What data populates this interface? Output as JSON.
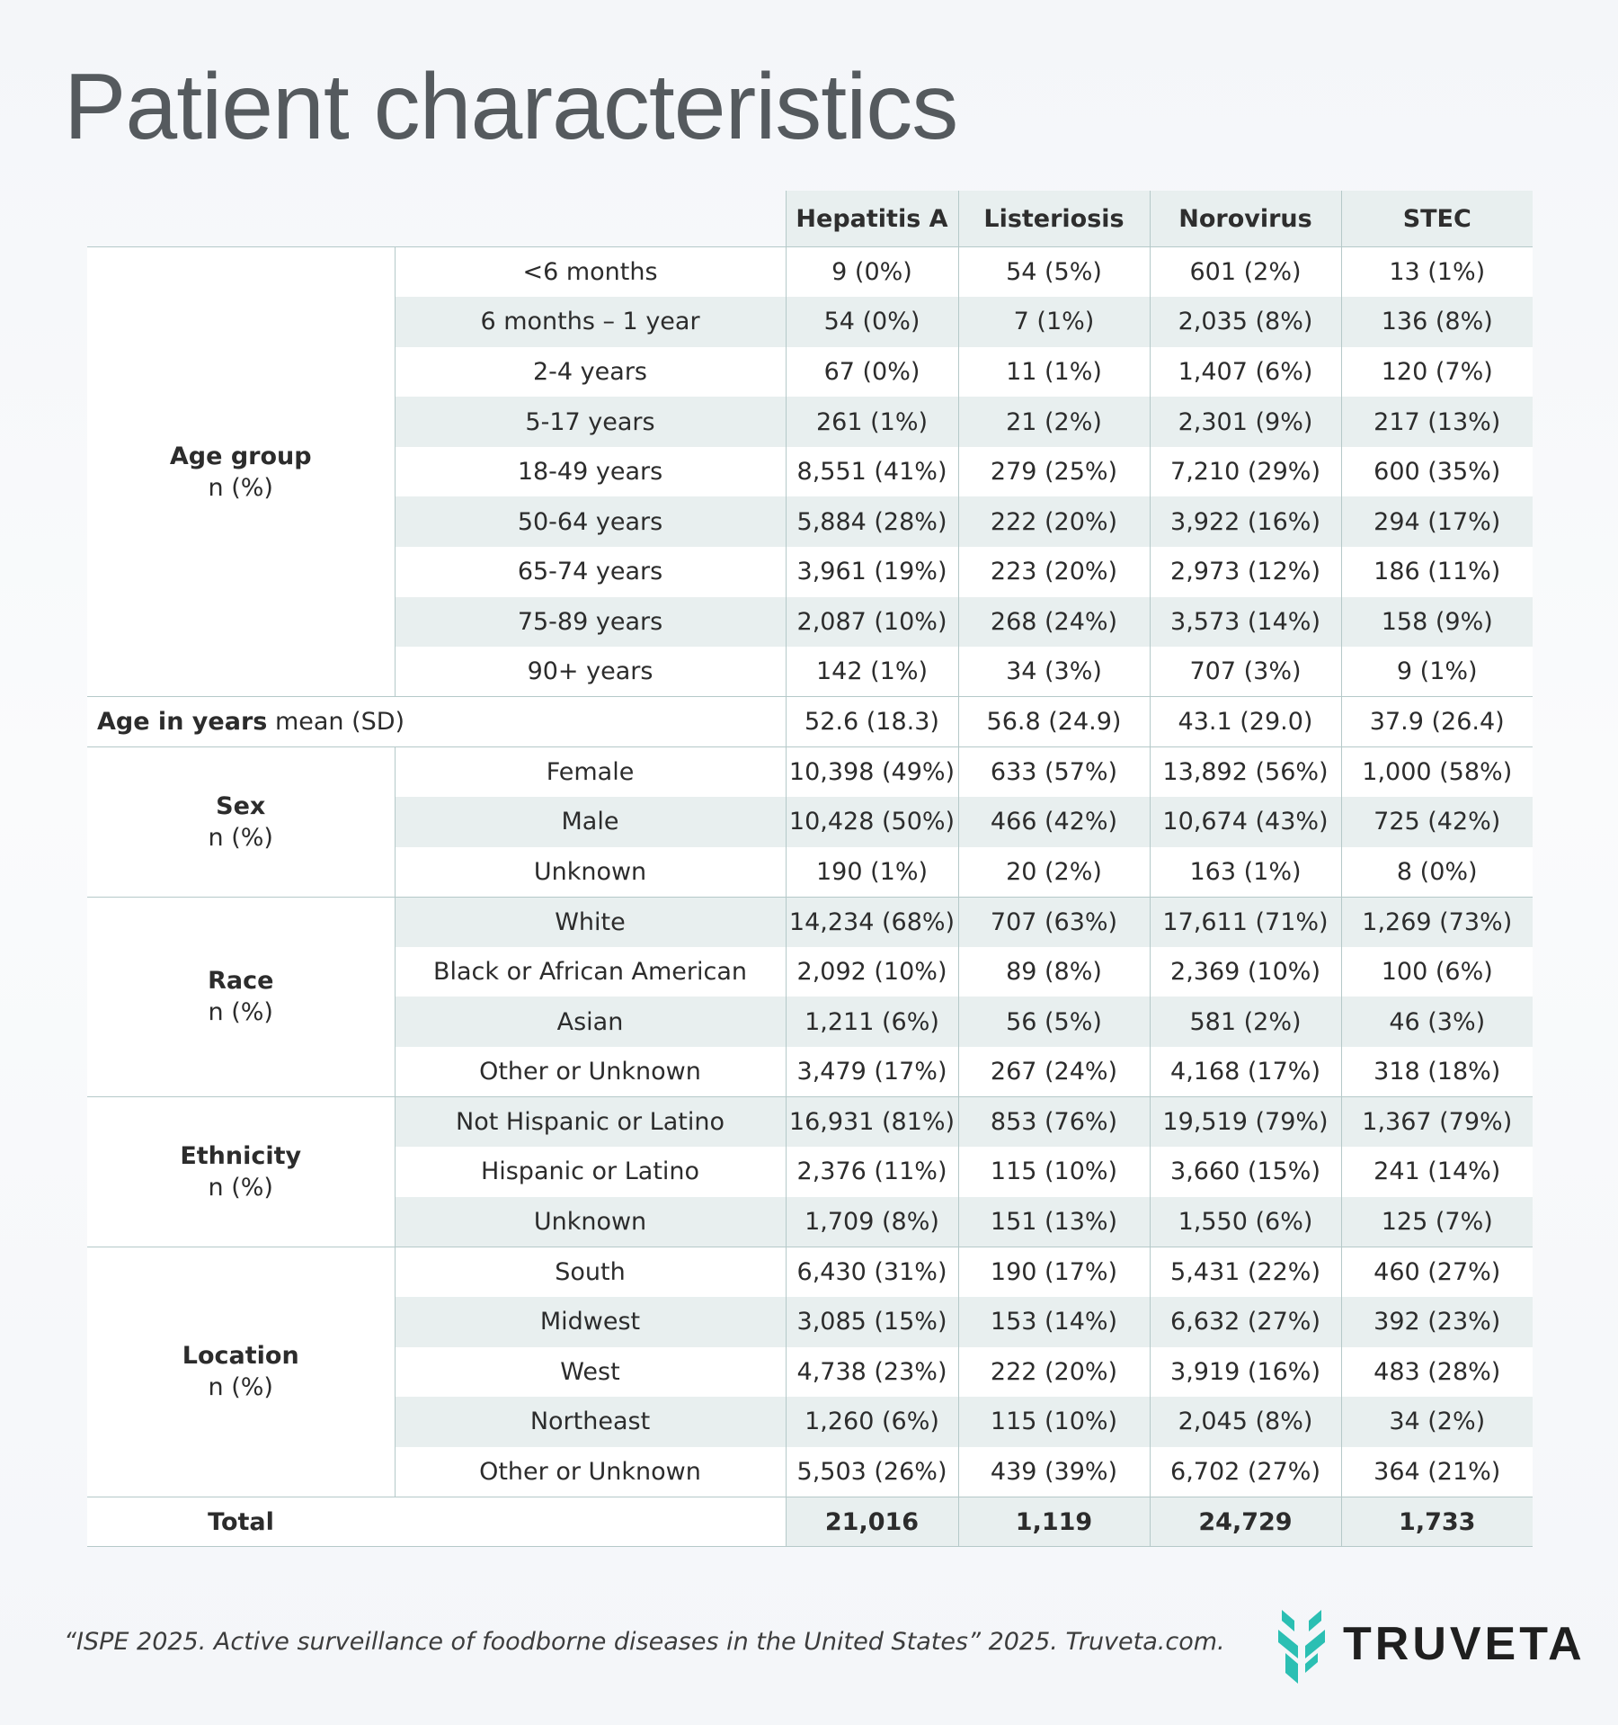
{
  "title": "Patient characteristics",
  "columns": [
    "Hepatitis A",
    "Listeriosis",
    "Norovirus",
    "STEC"
  ],
  "groups": {
    "age": {
      "name": "Age group",
      "unit": "n (%)",
      "rows": [
        {
          "label": "<6 months",
          "values": [
            "9 (0%)",
            "54 (5%)",
            "601 (2%)",
            "13 (1%)"
          ]
        },
        {
          "label": "6 months – 1 year",
          "values": [
            "54 (0%)",
            "7 (1%)",
            "2,035 (8%)",
            "136 (8%)"
          ]
        },
        {
          "label": "2-4 years",
          "values": [
            "67 (0%)",
            "11 (1%)",
            "1,407 (6%)",
            "120 (7%)"
          ]
        },
        {
          "label": "5-17 years",
          "values": [
            "261 (1%)",
            "21 (2%)",
            "2,301 (9%)",
            "217 (13%)"
          ]
        },
        {
          "label": "18-49 years",
          "values": [
            "8,551 (41%)",
            "279 (25%)",
            "7,210 (29%)",
            "600 (35%)"
          ]
        },
        {
          "label": "50-64 years",
          "values": [
            "5,884 (28%)",
            "222 (20%)",
            "3,922 (16%)",
            "294 (17%)"
          ]
        },
        {
          "label": "65-74 years",
          "values": [
            "3,961 (19%)",
            "223 (20%)",
            "2,973 (12%)",
            "186 (11%)"
          ]
        },
        {
          "label": "75-89 years",
          "values": [
            "2,087 (10%)",
            "268 (24%)",
            "3,573 (14%)",
            "158 (9%)"
          ]
        },
        {
          "label": "90+ years",
          "values": [
            "142 (1%)",
            "34 (3%)",
            "707 (3%)",
            "9 (1%)"
          ]
        }
      ]
    },
    "age_mean": {
      "name": "Age in years",
      "unit": "mean (SD)",
      "values": [
        "52.6 (18.3)",
        "56.8 (24.9)",
        "43.1 (29.0)",
        "37.9 (26.4)"
      ]
    },
    "sex": {
      "name": "Sex",
      "unit": "n (%)",
      "rows": [
        {
          "label": "Female",
          "values": [
            "10,398 (49%)",
            "633 (57%)",
            "13,892 (56%)",
            "1,000 (58%)"
          ]
        },
        {
          "label": "Male",
          "values": [
            "10,428 (50%)",
            "466 (42%)",
            "10,674 (43%)",
            "725 (42%)"
          ]
        },
        {
          "label": "Unknown",
          "values": [
            "190 (1%)",
            "20 (2%)",
            "163 (1%)",
            "8 (0%)"
          ]
        }
      ]
    },
    "race": {
      "name": "Race",
      "unit": "n (%)",
      "rows": [
        {
          "label": "White",
          "values": [
            "14,234 (68%)",
            "707 (63%)",
            "17,611 (71%)",
            "1,269 (73%)"
          ]
        },
        {
          "label": "Black or African American",
          "values": [
            "2,092 (10%)",
            "89 (8%)",
            "2,369 (10%)",
            "100 (6%)"
          ]
        },
        {
          "label": "Asian",
          "values": [
            "1,211 (6%)",
            "56 (5%)",
            "581 (2%)",
            "46 (3%)"
          ]
        },
        {
          "label": "Other or Unknown",
          "values": [
            "3,479 (17%)",
            "267 (24%)",
            "4,168 (17%)",
            "318 (18%)"
          ]
        }
      ]
    },
    "ethnicity": {
      "name": "Ethnicity",
      "unit": "n (%)",
      "rows": [
        {
          "label": "Not Hispanic or Latino",
          "values": [
            "16,931 (81%)",
            "853 (76%)",
            "19,519 (79%)",
            "1,367 (79%)"
          ]
        },
        {
          "label": "Hispanic or Latino",
          "values": [
            "2,376 (11%)",
            "115 (10%)",
            "3,660 (15%)",
            "241 (14%)"
          ]
        },
        {
          "label": "Unknown",
          "values": [
            "1,709 (8%)",
            "151 (13%)",
            "1,550 (6%)",
            "125 (7%)"
          ]
        }
      ]
    },
    "location": {
      "name": "Location",
      "unit": "n (%)",
      "rows": [
        {
          "label": "South",
          "values": [
            "6,430 (31%)",
            "190 (17%)",
            "5,431 (22%)",
            "460 (27%)"
          ]
        },
        {
          "label": "Midwest",
          "values": [
            "3,085 (15%)",
            "153 (14%)",
            "6,632 (27%)",
            "392 (23%)"
          ]
        },
        {
          "label": "West",
          "values": [
            "4,738 (23%)",
            "222 (20%)",
            "3,919 (16%)",
            "483 (28%)"
          ]
        },
        {
          "label": "Northeast",
          "values": [
            "1,260 (6%)",
            "115 (10%)",
            "2,045 (8%)",
            "34 (2%)"
          ]
        },
        {
          "label": "Other or Unknown",
          "values": [
            "5,503 (26%)",
            "439 (39%)",
            "6,702 (27%)",
            "364 (21%)"
          ]
        }
      ]
    }
  },
  "total": {
    "label": "Total",
    "values": [
      "21,016",
      "1,119",
      "24,729",
      "1,733"
    ]
  },
  "citation": "“ISPE 2025. Active surveillance of foodborne diseases in the United States” 2025. Truveta.com.",
  "logo": {
    "text": "TRUVETA",
    "icon": "truveta-chevron-logo-icon",
    "color": "#2bbfb3"
  }
}
